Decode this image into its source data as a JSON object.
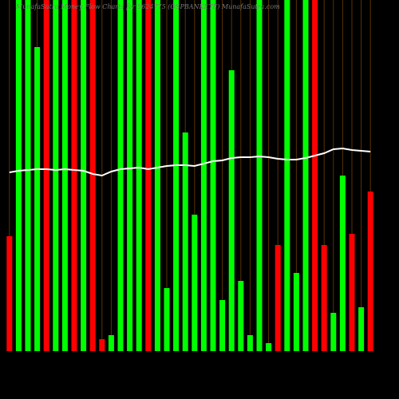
{
  "chart_data": {
    "type": "bar",
    "title": "MunafaSutra Money Flow Charts for 5624775 (OSPBANKETF) MunafaSutra.com",
    "ylim": [
      0,
      440
    ],
    "grid": true,
    "grid_color": "#5a3300",
    "line_color": "#ffffff",
    "series": [
      {
        "name": "Volume",
        "colors": [
          "#ff0000",
          "#00ff00",
          "#00ff00",
          "#00ff00",
          "#ff0000",
          "#00ff00",
          "#00ff00",
          "#ff0000",
          "#00ff00",
          "#ff0000",
          "#ff0000",
          "#00ff00",
          "#00ff00",
          "#00ff00",
          "#00ff00",
          "#ff0000",
          "#00ff00",
          "#00ff00",
          "#00ff00",
          "#00ff00",
          "#00ff00",
          "#00ff00",
          "#00ff00",
          "#00ff00",
          "#00ff00",
          "#00ff00",
          "#00ff00",
          "#00ff00",
          "#00ff00",
          "#ff0000",
          "#00ff00",
          "#00ff00",
          "#00ff00",
          "#ff0000",
          "#ff0000",
          "#00ff00",
          "#00ff00",
          "#ff0000",
          "#00ff00",
          "#ff0000"
        ],
        "values": [
          144,
          440,
          440,
          381,
          440,
          440,
          440,
          440,
          440,
          440,
          15,
          20,
          440,
          440,
          440,
          440,
          440,
          79,
          440,
          274,
          171,
          440,
          440,
          64,
          352,
          88,
          20,
          440,
          10,
          133,
          440,
          98,
          440,
          440,
          133,
          48,
          220,
          147,
          55,
          200
        ]
      },
      {
        "name": "Average",
        "values": [
          224,
          226,
          227,
          228,
          228,
          227,
          228,
          227,
          226,
          222,
          220,
          225,
          228,
          229,
          230,
          228,
          230,
          232,
          233,
          233,
          232,
          235,
          238,
          239,
          242,
          243,
          243,
          244,
          243,
          241,
          240,
          240,
          242,
          245,
          248,
          253,
          254,
          252,
          251,
          250
        ]
      }
    ]
  }
}
